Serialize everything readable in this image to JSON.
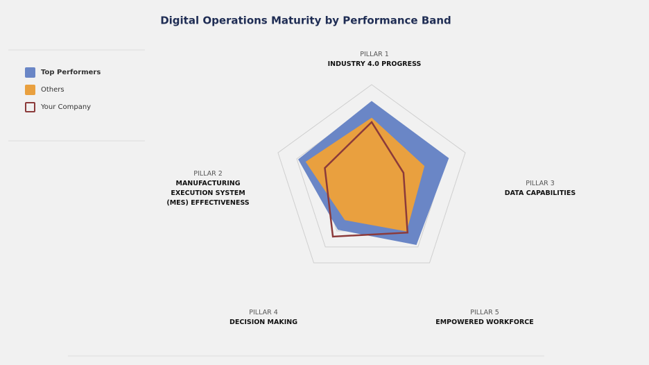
{
  "chart_data": {
    "type": "radar",
    "title": "Digital Operations Maturity by Performance Band",
    "category_prefixes": [
      "PILLAR 1",
      "PILLAR 3",
      "PILLAR 5",
      "PILLAR 4",
      "PILLAR 2"
    ],
    "categories": [
      "INDUSTRY 4.0 PROGRESS",
      "DATA CAPABILITIES",
      "EMPOWERED WORKFORCE",
      "DECISION MAKING",
      "MANUFACTURING EXECUTION SYSTEM (MES) EFFECTIVENESS"
    ],
    "series": [
      {
        "name": "Top Performers",
        "color": "#6a86c6",
        "values": [
          4.15,
          4.1,
          3.85,
          2.9,
          3.9
        ]
      },
      {
        "name": "Others",
        "color": "#e9a03f",
        "values": [
          3.3,
          2.8,
          3.0,
          2.3,
          3.5
        ]
      },
      {
        "name": "Your Company",
        "color": "#8b3a3a",
        "values": [
          3.1,
          1.7,
          3.1,
          3.35,
          2.5
        ]
      }
    ],
    "ylim": [
      0,
      5
    ],
    "yticks": [
      3,
      4,
      5
    ],
    "grid": true
  }
}
